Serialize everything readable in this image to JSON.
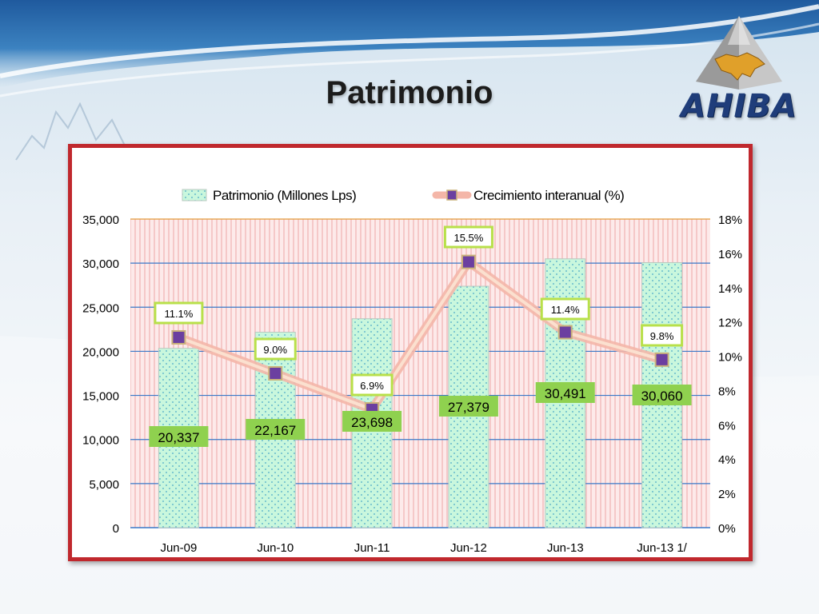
{
  "title": "Patrimonio",
  "logo": {
    "text": "AHIBA",
    "icon": "honduras-map-pyramid-icon"
  },
  "chart_data": {
    "type": "bar",
    "categories": [
      "Jun‑09",
      "Jun‑10",
      "Jun‑11",
      "Jun‑12",
      "Jun‑13",
      "Jun‑13 1/"
    ],
    "series": [
      {
        "name": "Patrimonio (Millones Lps)",
        "type": "bar",
        "axis": "left",
        "values": [
          20337,
          22167,
          23698,
          27379,
          30491,
          30060
        ],
        "labels": [
          "20,337",
          "22,167",
          "23,698",
          "27,379",
          "30,491",
          "30,060"
        ]
      },
      {
        "name": "Crecimiento interanual (%)",
        "type": "line",
        "axis": "right",
        "values": [
          11.1,
          9.0,
          6.9,
          15.5,
          11.4,
          9.8
        ],
        "labels": [
          "11.1%",
          "9.0%",
          "6.9%",
          "15.5%",
          "11.4%",
          "9.8%"
        ]
      }
    ],
    "y_left": {
      "range": [
        0,
        35000
      ],
      "ticks": [
        0,
        5000,
        10000,
        15000,
        20000,
        25000,
        30000,
        35000
      ],
      "tick_labels": [
        "0",
        "5,000",
        "10,000",
        "15,000",
        "20,000",
        "25,000",
        "30,000",
        "35,000"
      ]
    },
    "y_right": {
      "range": [
        0,
        18
      ],
      "ticks": [
        0,
        2,
        4,
        6,
        8,
        10,
        12,
        14,
        16,
        18
      ],
      "tick_labels": [
        "0%",
        "2%",
        "4%",
        "6%",
        "8%",
        "10%",
        "12%",
        "14%",
        "16%",
        "18%"
      ]
    },
    "grid": true,
    "legend_position": "top",
    "colors": {
      "bar_fill": "#c9f7dd",
      "bar_dots": "#4aa8c8",
      "line": "#f4b6a8",
      "marker": "#6b3fa0",
      "bar_label_bg": "#8fd14f",
      "pct_label_border": "#b8e04a",
      "frame": "#c0282d",
      "gridline": "#3a78c8"
    }
  }
}
